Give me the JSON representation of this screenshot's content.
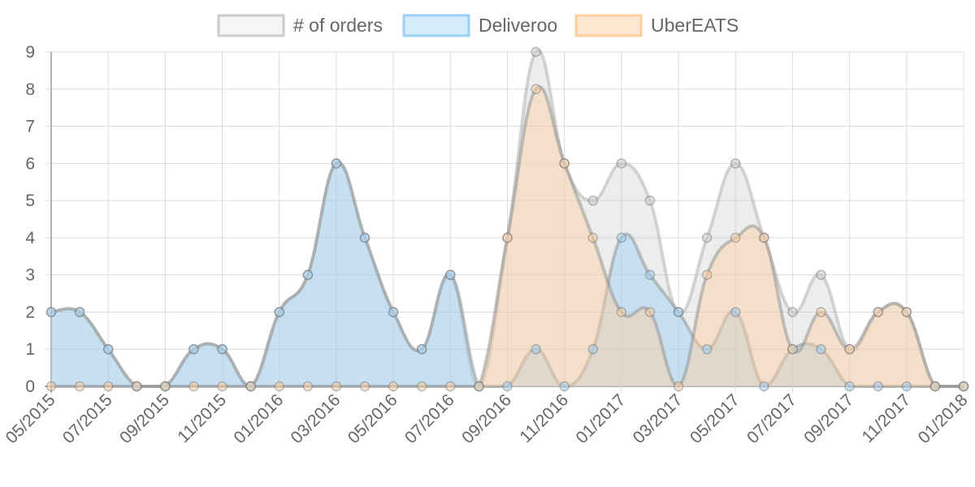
{
  "chart_data": {
    "type": "area",
    "x": [
      "05/2015",
      "06/2015",
      "07/2015",
      "08/2015",
      "09/2015",
      "10/2015",
      "11/2015",
      "12/2015",
      "01/2016",
      "02/2016",
      "03/2016",
      "04/2016",
      "05/2016",
      "06/2016",
      "07/2016",
      "08/2016",
      "09/2016",
      "10/2016",
      "11/2016",
      "12/2016",
      "01/2017",
      "02/2017",
      "03/2017",
      "04/2017",
      "05/2017",
      "06/2017",
      "07/2017",
      "08/2017",
      "09/2017",
      "10/2017",
      "11/2017",
      "12/2017",
      "01/2018"
    ],
    "x_tick_labels": [
      "05/2015",
      "07/2015",
      "09/2015",
      "11/2015",
      "01/2016",
      "03/2016",
      "05/2016",
      "07/2016",
      "09/2016",
      "11/2016",
      "01/2017",
      "03/2017",
      "05/2017",
      "07/2017",
      "09/2017",
      "11/2017",
      "01/2018"
    ],
    "ylim": [
      0,
      9
    ],
    "y_ticks": [
      "0",
      "1",
      "2",
      "3",
      "4",
      "5",
      "6",
      "7",
      "8",
      "9"
    ],
    "grid": true,
    "legend_position": "top-center",
    "series": [
      {
        "name": "# of orders",
        "color": "#c9cbcf",
        "fill": "#f5f5f6",
        "values": [
          2,
          2,
          1,
          0,
          0,
          1,
          1,
          0,
          2,
          3,
          6,
          4,
          2,
          1,
          3,
          0,
          4,
          9,
          6,
          5,
          6,
          5,
          2,
          4,
          6,
          4,
          2,
          3,
          1,
          2,
          2,
          0,
          0
        ]
      },
      {
        "name": "Deliveroo",
        "color": "#9ad0f5",
        "fill": "#d7ecfb",
        "values": [
          2,
          2,
          1,
          0,
          0,
          1,
          1,
          0,
          2,
          3,
          6,
          4,
          2,
          1,
          3,
          0,
          0,
          1,
          0,
          1,
          4,
          3,
          2,
          1,
          2,
          0,
          1,
          1,
          0,
          0,
          0,
          0,
          0
        ]
      },
      {
        "name": "UberEATS",
        "color": "#ffcf9f",
        "fill": "#ffe6ce",
        "values": [
          0,
          0,
          0,
          0,
          0,
          0,
          0,
          0,
          0,
          0,
          0,
          0,
          0,
          0,
          0,
          0,
          4,
          8,
          6,
          4,
          2,
          2,
          0,
          3,
          4,
          4,
          1,
          2,
          1,
          2,
          2,
          0,
          0
        ]
      }
    ]
  }
}
